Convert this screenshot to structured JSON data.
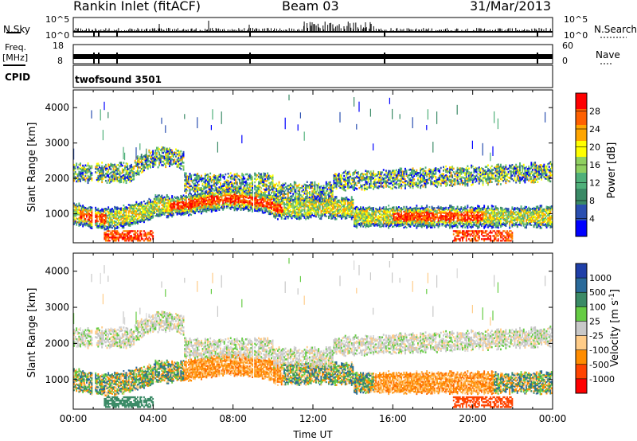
{
  "header": {
    "station": "Rankin Inlet (fitACF)",
    "beam": "Beam 03",
    "date": "31/Mar/2013"
  },
  "side_labels": {
    "nsky": "N.Sky",
    "nsearch": "N.Search",
    "freq_line1": "Freq.",
    "freq_line2": "[MHz]",
    "nave": "Nave",
    "cpid": "CPID",
    "cpid_value": "twofsound 3501"
  },
  "colors": {
    "power_scale": [
      "#0000ff",
      "#2a4fb0",
      "#3a8a66",
      "#4fb07a",
      "#8fd060",
      "#ffff00",
      "#ffa500",
      "#ff6000",
      "#ff0000"
    ],
    "velocity_scale": [
      "#1f3fa8",
      "#2a6a9a",
      "#3a8a66",
      "#66cc44",
      "#c8c8c8",
      "#ffcc88",
      "#ff8c00",
      "#ff4400",
      "#ff0000"
    ]
  },
  "chart_data": [
    {
      "type": "line",
      "name_left": "N.Sky",
      "name_right": "N.Search",
      "left_ticks": [
        "10^5",
        "10^0"
      ],
      "right_ticks": [
        "10^5",
        "10^0"
      ],
      "x_ticks": [
        "00:00",
        "04:00",
        "08:00",
        "12:00",
        "16:00",
        "20:00",
        "00:00"
      ]
    },
    {
      "type": "line",
      "left_ticks": [
        "18",
        "8"
      ],
      "right_ticks": [
        "60",
        "0"
      ],
      "frequency_mhz_typical": 10,
      "x_ticks": [
        "00:00",
        "04:00",
        "08:00",
        "12:00",
        "16:00",
        "20:00",
        "00:00"
      ]
    },
    {
      "type": "heatmap",
      "ylabel": "Slant Range [km]",
      "y_ticks": [
        "1000",
        "2000",
        "3000",
        "4000"
      ],
      "ylim": [
        180,
        4500
      ],
      "colorbar_label": "Power [dB]",
      "colorbar_ticks": [
        "4",
        "8",
        "12",
        "16",
        "20",
        "24",
        "28"
      ],
      "colorbar_range": [
        0,
        32
      ],
      "x_ticks": [
        "00:00",
        "04:00",
        "08:00",
        "12:00",
        "16:00",
        "20:00",
        "00:00"
      ]
    },
    {
      "type": "heatmap",
      "ylabel": "Slant Range [km]",
      "y_ticks": [
        "1000",
        "2000",
        "3000",
        "4000"
      ],
      "ylim": [
        180,
        4500
      ],
      "colorbar_label": "Velocity [m s^-1]",
      "colorbar_ticks": [
        "1000",
        "500",
        "100",
        "25",
        "-25",
        "-100",
        "-500",
        "-1000"
      ],
      "xlabel": "Time UT",
      "x_ticks": [
        "00:00",
        "04:00",
        "08:00",
        "12:00",
        "16:00",
        "20:00",
        "00:00"
      ]
    }
  ]
}
